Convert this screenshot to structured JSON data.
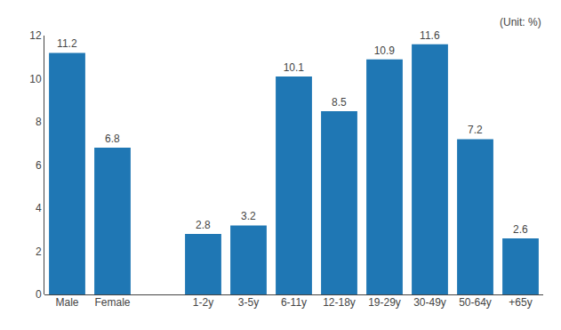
{
  "chart_data": {
    "type": "bar",
    "categories": [
      "Male",
      "Female",
      null,
      "1-2y",
      "3-5y",
      "6-11y",
      "12-18y",
      "19-29y",
      "30-49y",
      "50-64y",
      "+65y"
    ],
    "values": [
      11.2,
      6.8,
      null,
      2.8,
      3.2,
      10.1,
      8.5,
      10.9,
      11.6,
      7.2,
      2.6
    ],
    "ylim": [
      0,
      12
    ],
    "yticks": [
      0,
      2,
      4,
      6,
      8,
      10,
      12
    ],
    "grid": false,
    "data_labels": true,
    "annotations": [
      "(Unit: %)"
    ]
  }
}
